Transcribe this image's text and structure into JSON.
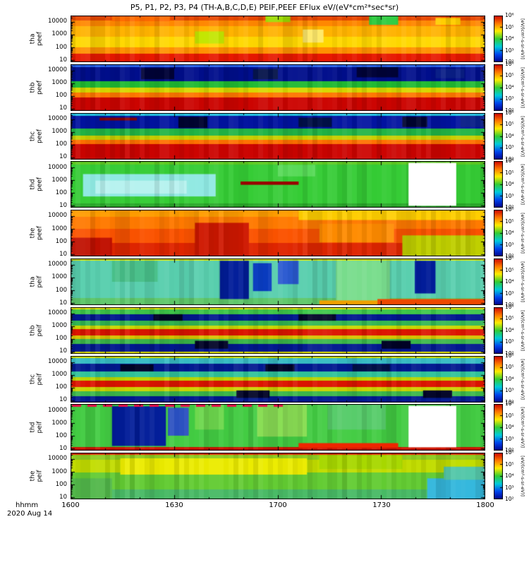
{
  "chart_data": {
    "type": "heatmap",
    "title": "P5, P1, P2, P3, P4 (TH-A,B,C,D,E)  PEIF,PEEF  EFlux eV/(eV*cm²*sec*sr)",
    "xlabel": "hhmm",
    "date": "2020 Aug 14",
    "x_ticks": [
      "1600",
      "1630",
      "1700",
      "1730",
      "1800"
    ],
    "x_range_minutes": 120,
    "y_scale": "log",
    "y_ticks": [
      "10000",
      "1000",
      "100",
      "10"
    ],
    "y_range": [
      10,
      25000
    ],
    "colorbar_ticks": [
      "10⁶",
      "10⁵",
      "10⁴",
      "10³",
      "10²"
    ],
    "colorbar_unit": "[eV/(cm²-s-sr-eV)]",
    "colorbar_colors": [
      "#cc0000",
      "#ff7700",
      "#ffee00",
      "#33cc33",
      "#00ccdd",
      "#0044ee",
      "#000088"
    ],
    "legend": "colorbar-right-per-panel",
    "grid": false,
    "panels": [
      {
        "probe": "tha",
        "instrument": "peef",
        "bands": [
          {
            "f": 0.1,
            "c": "#e84800"
          },
          {
            "f": 0.12,
            "c": "#ff8800"
          },
          {
            "f": 0.22,
            "c": "#ffb300"
          },
          {
            "f": 0.23,
            "c": "#ffd800"
          },
          {
            "f": 0.13,
            "c": "#ff9100"
          },
          {
            "f": 0.2,
            "c": "#e81800"
          }
        ],
        "patches": [
          {
            "x": 0.72,
            "w": 0.07,
            "y": 0.0,
            "h": 0.2,
            "c": "#2ecc40"
          },
          {
            "x": 0.1,
            "w": 0.14,
            "y": 0.0,
            "h": 0.12,
            "c": "#ff6a00"
          },
          {
            "x": 0.47,
            "w": 0.06,
            "y": 0.0,
            "h": 0.14,
            "c": "#9ddb00"
          },
          {
            "x": 0.56,
            "w": 0.05,
            "y": 0.3,
            "h": 0.28,
            "c": "#ffe96a"
          },
          {
            "x": 0.3,
            "w": 0.07,
            "y": 0.34,
            "h": 0.26,
            "c": "#c3e600"
          },
          {
            "x": 0.88,
            "w": 0.06,
            "y": 0.05,
            "h": 0.15,
            "c": "#ffcf00"
          }
        ]
      },
      {
        "probe": "thb",
        "instrument": "peef",
        "bands": [
          {
            "f": 0.06,
            "c": "#2b66f0"
          },
          {
            "f": 0.3,
            "c": "#000e8c"
          },
          {
            "f": 0.14,
            "c": "#1fbb33"
          },
          {
            "f": 0.1,
            "c": "#d8d800"
          },
          {
            "f": 0.1,
            "c": "#ff7700"
          },
          {
            "f": 0.3,
            "c": "#cc0400"
          }
        ],
        "patches": [
          {
            "x": 0.17,
            "w": 0.08,
            "y": 0.08,
            "h": 0.24,
            "c": "#000338"
          },
          {
            "x": 0.44,
            "w": 0.06,
            "y": 0.1,
            "h": 0.22,
            "c": "#021048"
          },
          {
            "x": 0.69,
            "w": 0.1,
            "y": 0.06,
            "h": 0.22,
            "c": "#000338"
          },
          {
            "x": 0.88,
            "w": 0.07,
            "y": 0.1,
            "h": 0.2,
            "c": "#0a1f88"
          }
        ]
      },
      {
        "probe": "thc",
        "instrument": "peef",
        "bands": [
          {
            "f": 0.06,
            "c": "#28c8e8"
          },
          {
            "f": 0.28,
            "c": "#0213a0"
          },
          {
            "f": 0.15,
            "c": "#21b546"
          },
          {
            "f": 0.09,
            "c": "#c9cf00"
          },
          {
            "f": 0.09,
            "c": "#ff7000"
          },
          {
            "f": 0.33,
            "c": "#cc0400"
          }
        ],
        "patches": [
          {
            "x": 0.07,
            "w": 0.09,
            "y": 0.1,
            "h": 0.06,
            "c": "#8c0000"
          },
          {
            "x": 0.26,
            "w": 0.07,
            "y": 0.08,
            "h": 0.24,
            "c": "#000430"
          },
          {
            "x": 0.55,
            "w": 0.08,
            "y": 0.1,
            "h": 0.2,
            "c": "#021048"
          },
          {
            "x": 0.8,
            "w": 0.06,
            "y": 0.08,
            "h": 0.22,
            "c": "#000430"
          },
          {
            "x": 0.94,
            "w": 0.06,
            "y": 0.06,
            "h": 0.24,
            "c": "#0a1f88"
          }
        ]
      },
      {
        "probe": "thd",
        "instrument": "peef",
        "bands": [
          {
            "f": 0.08,
            "c": "#5ecb22"
          },
          {
            "f": 0.84,
            "c": "#35cc35"
          },
          {
            "f": 0.08,
            "c": "#2aa82a"
          }
        ],
        "patches": [
          {
            "x": 0.03,
            "w": 0.32,
            "y": 0.28,
            "h": 0.48,
            "c": "#8fe9e2"
          },
          {
            "x": 0.06,
            "w": 0.22,
            "y": 0.42,
            "h": 0.28,
            "c": "#b7f2ef"
          },
          {
            "x": 0.5,
            "w": 0.09,
            "y": 0.08,
            "h": 0.25,
            "c": "#57da57"
          },
          {
            "x": 0.41,
            "w": 0.14,
            "y": 0.44,
            "h": 0.07,
            "c": "#990000",
            "solid": true
          },
          {
            "x": 0.815,
            "w": 0.115,
            "y": 0.04,
            "h": 0.92,
            "c": "#ffffff",
            "solid": true
          }
        ]
      },
      {
        "probe": "the",
        "instrument": "peef",
        "bands": [
          {
            "f": 0.15,
            "c": "#ff9d00"
          },
          {
            "f": 0.25,
            "c": "#ff7a00"
          },
          {
            "f": 0.3,
            "c": "#fb5300"
          },
          {
            "f": 0.3,
            "c": "#e02600"
          }
        ],
        "patches": [
          {
            "x": 0.55,
            "w": 0.45,
            "y": 0.0,
            "h": 0.22,
            "c": "#ffce00"
          },
          {
            "x": 0.8,
            "w": 0.2,
            "y": 0.55,
            "h": 0.45,
            "c": "#c0cf00"
          },
          {
            "x": 0.3,
            "w": 0.13,
            "y": 0.28,
            "h": 0.72,
            "c": "#cf1800"
          },
          {
            "x": 0.0,
            "w": 0.1,
            "y": 0.6,
            "h": 0.4,
            "c": "#c01000"
          },
          {
            "x": 0.6,
            "w": 0.18,
            "y": 0.3,
            "h": 0.4,
            "c": "#ff8c00"
          }
        ]
      },
      {
        "probe": "tha",
        "instrument": "peif",
        "bands": [
          {
            "f": 0.05,
            "c": "#d6e000"
          },
          {
            "f": 0.8,
            "c": "#59cfae"
          },
          {
            "f": 0.15,
            "c": "#5fc86a"
          }
        ],
        "patches": [
          {
            "x": 0.1,
            "w": 0.11,
            "y": 0.05,
            "h": 0.45,
            "c": "#49c08a"
          },
          {
            "x": 0.36,
            "w": 0.07,
            "y": 0.05,
            "h": 0.82,
            "c": "#021d99"
          },
          {
            "x": 0.44,
            "w": 0.045,
            "y": 0.1,
            "h": 0.6,
            "c": "#0a3cc0"
          },
          {
            "x": 0.5,
            "w": 0.05,
            "y": 0.05,
            "h": 0.5,
            "c": "#2a5ad0"
          },
          {
            "x": 0.64,
            "w": 0.13,
            "y": 0.05,
            "h": 0.9,
            "c": "#79dd8d"
          },
          {
            "x": 0.83,
            "w": 0.05,
            "y": 0.05,
            "h": 0.7,
            "c": "#021d99"
          },
          {
            "x": 0.74,
            "w": 0.26,
            "y": 0.87,
            "h": 0.13,
            "c": "#ee4800",
            "solid": true
          },
          {
            "x": 0.6,
            "w": 0.14,
            "y": 0.9,
            "h": 0.1,
            "c": "#f0a000",
            "solid": true
          }
        ]
      },
      {
        "probe": "thb",
        "instrument": "peif",
        "bands": [
          {
            "f": 0.05,
            "c": "#ecec00"
          },
          {
            "f": 0.1,
            "c": "#3fc84a"
          },
          {
            "f": 0.14,
            "c": "#02188f"
          },
          {
            "f": 0.1,
            "c": "#32b853"
          },
          {
            "f": 0.08,
            "c": "#ccd800"
          },
          {
            "f": 0.13,
            "c": "#dd1400"
          },
          {
            "f": 0.08,
            "c": "#d8c400"
          },
          {
            "f": 0.1,
            "c": "#3cb84a"
          },
          {
            "f": 0.17,
            "c": "#02188f"
          },
          {
            "f": 0.05,
            "c": "#ecec00"
          }
        ],
        "patches": [
          {
            "x": 0.2,
            "w": 0.07,
            "y": 0.15,
            "h": 0.14,
            "c": "#000326"
          },
          {
            "x": 0.55,
            "w": 0.09,
            "y": 0.15,
            "h": 0.14,
            "c": "#000326"
          },
          {
            "x": 0.3,
            "w": 0.08,
            "y": 0.72,
            "h": 0.17,
            "c": "#000326"
          },
          {
            "x": 0.75,
            "w": 0.07,
            "y": 0.72,
            "h": 0.17,
            "c": "#000326"
          }
        ]
      },
      {
        "probe": "thc",
        "instrument": "peif",
        "bands": [
          {
            "f": 0.05,
            "c": "#d8e400"
          },
          {
            "f": 0.12,
            "c": "#37bcc4"
          },
          {
            "f": 0.16,
            "c": "#02188f"
          },
          {
            "f": 0.12,
            "c": "#30c49a"
          },
          {
            "f": 0.08,
            "c": "#b8d400"
          },
          {
            "f": 0.13,
            "c": "#dd1400"
          },
          {
            "f": 0.09,
            "c": "#ccd400"
          },
          {
            "f": 0.1,
            "c": "#3cb84a"
          },
          {
            "f": 0.15,
            "c": "#02188f"
          }
        ],
        "patches": [
          {
            "x": 0.12,
            "w": 0.08,
            "y": 0.18,
            "h": 0.15,
            "c": "#000326"
          },
          {
            "x": 0.47,
            "w": 0.07,
            "y": 0.18,
            "h": 0.15,
            "c": "#000326"
          },
          {
            "x": 0.68,
            "w": 0.09,
            "y": 0.18,
            "h": 0.15,
            "c": "#021048"
          },
          {
            "x": 0.4,
            "w": 0.08,
            "y": 0.74,
            "h": 0.16,
            "c": "#000326"
          },
          {
            "x": 0.85,
            "w": 0.07,
            "y": 0.74,
            "h": 0.16,
            "c": "#000326"
          }
        ]
      },
      {
        "probe": "thd",
        "instrument": "peif",
        "dashed_top": "#e8114b",
        "bands": [
          {
            "f": 0.93,
            "c": "#43cc43"
          },
          {
            "f": 0.07,
            "c": "#cc1400"
          }
        ],
        "patches": [
          {
            "x": 0.1,
            "w": 0.13,
            "y": 0.05,
            "h": 0.85,
            "c": "#021d99"
          },
          {
            "x": 0.235,
            "w": 0.05,
            "y": 0.08,
            "h": 0.6,
            "c": "#2a50c0"
          },
          {
            "x": 0.3,
            "w": 0.07,
            "y": 0.0,
            "h": 0.55,
            "c": "#6ed84e"
          },
          {
            "x": 0.45,
            "w": 0.12,
            "y": 0.0,
            "h": 0.7,
            "c": "#8ade55"
          },
          {
            "x": 0.62,
            "w": 0.14,
            "y": 0.0,
            "h": 0.55,
            "c": "#57cc6a"
          },
          {
            "x": 0.55,
            "w": 0.24,
            "y": 0.84,
            "h": 0.1,
            "c": "#ee2600",
            "solid": true
          },
          {
            "x": 0.815,
            "w": 0.115,
            "y": 0.04,
            "h": 0.89,
            "c": "#ffffff",
            "solid": true
          }
        ]
      },
      {
        "probe": "the",
        "instrument": "peif",
        "bands": [
          {
            "f": 0.05,
            "c": "#dd2600"
          },
          {
            "f": 0.1,
            "c": "#8fcc22"
          },
          {
            "f": 0.28,
            "c": "#c2dd00"
          },
          {
            "f": 0.37,
            "c": "#63cc33"
          },
          {
            "f": 0.2,
            "c": "#49bb66"
          }
        ],
        "patches": [
          {
            "x": 0.12,
            "w": 0.45,
            "y": 0.12,
            "h": 0.35,
            "c": "#ecec00"
          },
          {
            "x": 0.6,
            "w": 0.2,
            "y": 0.05,
            "h": 0.3,
            "c": "#a8d800"
          },
          {
            "x": 0.86,
            "w": 0.14,
            "y": 0.55,
            "h": 0.45,
            "c": "#35b8dd"
          },
          {
            "x": 0.9,
            "w": 0.1,
            "y": 0.3,
            "h": 0.28,
            "c": "#55c8aa"
          },
          {
            "x": 0.0,
            "w": 0.1,
            "y": 0.55,
            "h": 0.45,
            "c": "#52b84a"
          }
        ]
      }
    ]
  }
}
